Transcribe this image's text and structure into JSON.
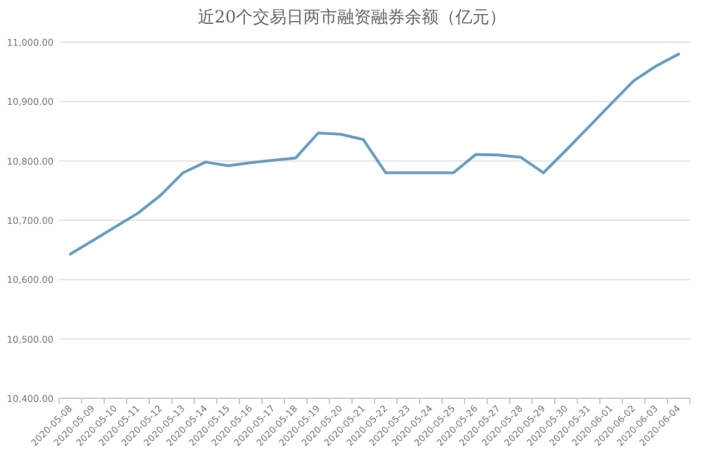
{
  "chart_data": {
    "type": "line",
    "title": "近20个交易日两市融资融券余额（亿元）",
    "categories": [
      "2020-05-08",
      "2020-05-09",
      "2020-05-10",
      "2020-05-11",
      "2020-05-12",
      "2020-05-13",
      "2020-05-14",
      "2020-05-15",
      "2020-05-16",
      "2020-05-17",
      "2020-05-18",
      "2020-05-19",
      "2020-05-20",
      "2020-05-21",
      "2020-05-22",
      "2020-05-23",
      "2020-05-24",
      "2020-05-25",
      "2020-05-26",
      "2020-05-27",
      "2020-05-28",
      "2020-05-29",
      "2020-05-30",
      "2020-05-31",
      "2020-06-01",
      "2020-06-02",
      "2020-06-03",
      "2020-06-04"
    ],
    "series": [
      {
        "color": "#6a9ec0",
        "values": [
          10643,
          10666,
          10689,
          10712,
          10742,
          10780,
          10798,
          10792,
          10797,
          10801,
          10805,
          10847,
          10845,
          10836,
          10780,
          10780,
          10780,
          10780,
          10811,
          10810,
          10806,
          10780,
          10818,
          10857,
          10896,
          10935,
          10960,
          10980
        ]
      }
    ],
    "ylim": [
      10400,
      11000
    ],
    "yticks": [
      {
        "value": 10400,
        "label": "10,400.00"
      },
      {
        "value": 10500,
        "label": "10,500.00"
      },
      {
        "value": 10600,
        "label": "10,600.00"
      },
      {
        "value": 10700,
        "label": "10,700.00"
      },
      {
        "value": 10800,
        "label": "10,800.00"
      },
      {
        "value": 10900,
        "label": "10,900.00"
      },
      {
        "value": 11000,
        "label": "11,000.00"
      }
    ],
    "grid": "y"
  }
}
